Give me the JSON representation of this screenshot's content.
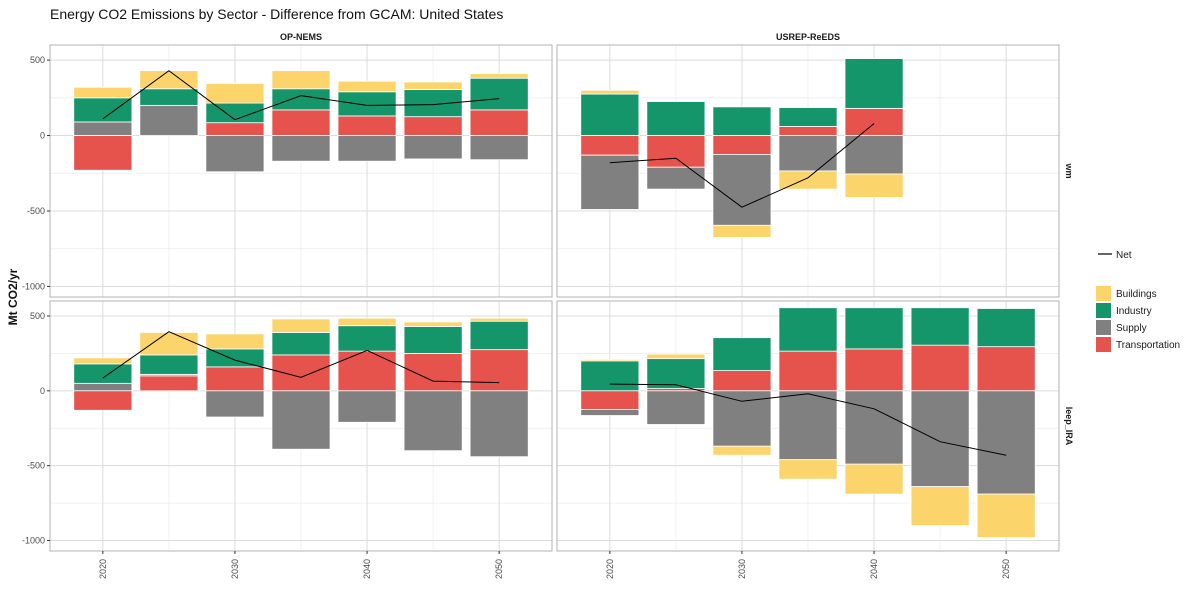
{
  "chart_data": {
    "type": "bar",
    "title": "Energy CO2 Emissions by Sector - Difference from GCAM: United States",
    "ylabel": "Mt CO2/yr",
    "xlabel": "",
    "ylim": [
      -1070,
      600
    ],
    "xlim": [
      2016,
      2054
    ],
    "yticks": [
      -1000,
      -500,
      0,
      500
    ],
    "xticks": [
      2020,
      2030,
      2040,
      2050
    ],
    "grid": true,
    "legend_position": "right",
    "colors": {
      "Buildings": "#FCD46C",
      "Industry": "#15956A",
      "Supply": "#808080",
      "Transportation": "#E6534D",
      "Net": "#000000",
      "panel_border": "#b3b3b3",
      "grid_major": "#dcdcdc",
      "grid_minor": "#ececec"
    },
    "legend": {
      "line": [
        "Net"
      ],
      "fill": [
        "Buildings",
        "Industry",
        "Supply",
        "Transportation"
      ]
    },
    "columns": [
      "OP-NEMS",
      "USREP-ReEDS"
    ],
    "rows": [
      "wm",
      "leep_IRA"
    ],
    "years": [
      2020,
      2025,
      2030,
      2035,
      2040,
      2045,
      2050
    ],
    "panels": [
      {
        "model": "OP-NEMS",
        "scenario": "wm",
        "series": [
          {
            "name": "Buildings",
            "values": [
              70,
              120,
              130,
              120,
              70,
              50,
              30
            ]
          },
          {
            "name": "Industry",
            "values": [
              160,
              110,
              130,
              140,
              160,
              180,
              210
            ]
          },
          {
            "name": "Supply",
            "values": [
              90,
              200,
              -240,
              -170,
              -170,
              -155,
              -160
            ]
          },
          {
            "name": "Transportation",
            "values": [
              -230,
              0,
              85,
              170,
              130,
              125,
              170
            ]
          },
          {
            "name": "Net",
            "values": [
              110,
              430,
              105,
              265,
              200,
              205,
              245
            ]
          }
        ]
      },
      {
        "model": "USREP-ReEDS",
        "scenario": "wm",
        "series": [
          {
            "name": "Buildings",
            "values": [
              25,
              0,
              -80,
              -120,
              -155,
              null,
              null
            ]
          },
          {
            "name": "Industry",
            "values": [
              275,
              225,
              190,
              125,
              330,
              null,
              null
            ]
          },
          {
            "name": "Supply",
            "values": [
              -360,
              -145,
              -470,
              -235,
              -255,
              null,
              null
            ]
          },
          {
            "name": "Transportation",
            "values": [
              -130,
              -210,
              -125,
              60,
              180,
              null,
              null
            ]
          },
          {
            "name": "Net",
            "values": [
              -180,
              -150,
              -475,
              -280,
              80,
              null,
              null
            ]
          }
        ]
      },
      {
        "model": "OP-NEMS",
        "scenario": "leep_IRA",
        "series": [
          {
            "name": "Buildings",
            "values": [
              40,
              150,
              100,
              90,
              50,
              30,
              20
            ]
          },
          {
            "name": "Industry",
            "values": [
              130,
              130,
              120,
              150,
              170,
              180,
              190
            ]
          },
          {
            "name": "Supply",
            "values": [
              50,
              10,
              -175,
              -390,
              -210,
              -400,
              -440
            ]
          },
          {
            "name": "Transportation",
            "values": [
              -130,
              100,
              160,
              240,
              265,
              250,
              275
            ]
          },
          {
            "name": "Net",
            "values": [
              85,
              395,
              205,
              90,
              270,
              65,
              55
            ]
          }
        ]
      },
      {
        "model": "USREP-ReEDS",
        "scenario": "leep_IRA",
        "series": [
          {
            "name": "Buildings",
            "values": [
              10,
              30,
              -60,
              -130,
              -200,
              -260,
              -290
            ]
          },
          {
            "name": "Industry",
            "values": [
              200,
              200,
              220,
              290,
              275,
              250,
              255
            ]
          },
          {
            "name": "Supply",
            "values": [
              -40,
              -225,
              -370,
              -460,
              -490,
              -640,
              -690
            ]
          },
          {
            "name": "Transportation",
            "values": [
              -125,
              15,
              135,
              265,
              280,
              305,
              295
            ]
          },
          {
            "name": "Net",
            "values": [
              45,
              40,
              -70,
              -20,
              -120,
              -340,
              -430
            ]
          }
        ]
      }
    ]
  }
}
